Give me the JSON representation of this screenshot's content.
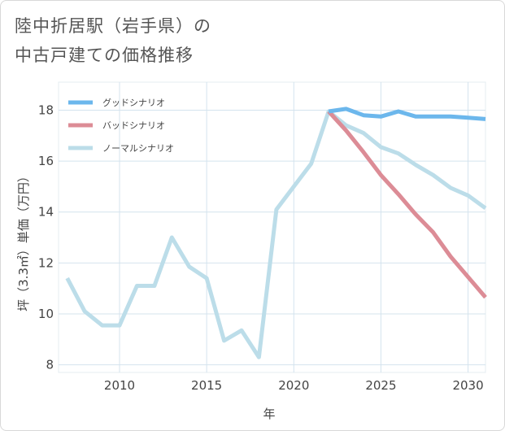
{
  "title": {
    "line1": "陸中折居駅（岩手県）の",
    "line2": "中古戸建ての価格推移"
  },
  "chart_data": {
    "type": "line",
    "xlabel": "年",
    "ylabel": "坪（3.3㎡）単価（万円）",
    "xlim": [
      2006.5,
      2031
    ],
    "ylim": [
      7.7,
      19.1
    ],
    "xticks": [
      2010,
      2015,
      2020,
      2025,
      2030
    ],
    "yticks": [
      8,
      10,
      12,
      14,
      16,
      18
    ],
    "grid": true,
    "legend_position": "top-left",
    "series": [
      {
        "name": "グッドシナリオ",
        "color": "#6cb7ec",
        "x": [
          2022,
          2023,
          2024,
          2025,
          2026,
          2027,
          2028,
          2029,
          2030,
          2031
        ],
        "values": [
          17.95,
          18.05,
          17.8,
          17.75,
          17.95,
          17.75,
          17.75,
          17.75,
          17.7,
          17.65
        ]
      },
      {
        "name": "バッドシナリオ",
        "color": "#dc8c96",
        "x": [
          2022,
          2023,
          2024,
          2025,
          2026,
          2027,
          2028,
          2029,
          2030,
          2031
        ],
        "values": [
          17.95,
          17.2,
          16.35,
          15.45,
          14.7,
          13.9,
          13.2,
          12.25,
          11.45,
          10.65
        ]
      },
      {
        "name": "ノーマルシナリオ",
        "color": "#bcdde9",
        "x": [
          2007,
          2008,
          2009,
          2010,
          2011,
          2012,
          2013,
          2014,
          2015,
          2016,
          2017,
          2018,
          2019,
          2020,
          2021,
          2022,
          2023,
          2024,
          2025,
          2026,
          2027,
          2028,
          2029,
          2030,
          2031
        ],
        "values": [
          11.4,
          10.1,
          9.55,
          9.55,
          11.1,
          11.1,
          13.0,
          11.85,
          11.4,
          8.95,
          9.35,
          8.3,
          14.1,
          15.0,
          15.9,
          17.95,
          17.4,
          17.1,
          16.55,
          16.3,
          15.85,
          15.45,
          14.95,
          14.65,
          14.15
        ]
      }
    ]
  }
}
